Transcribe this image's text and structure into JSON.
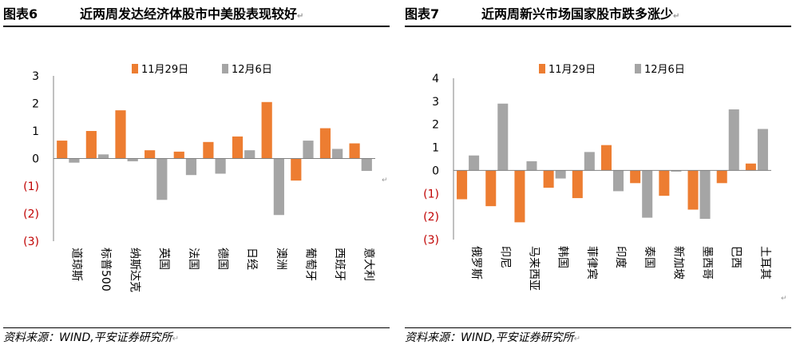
{
  "colors": {
    "series1": "#ED7D31",
    "series2": "#A5A5A5",
    "negative_label": "#C00000"
  },
  "return_mark": "↵",
  "panels": [
    {
      "figure_no": "图表6",
      "title": "近两周发达经济体股市中美股表现较好",
      "source": "资料来源：WIND,平安证券研究所",
      "chart_data": {
        "type": "bar",
        "title": "近两周发达经济体股市中美股表现较好",
        "categories": [
          "道琼斯",
          "标普500",
          "纳斯达克",
          "英国",
          "法国",
          "德国",
          "日经",
          "澳洲",
          "葡萄牙",
          "西班牙",
          "意大利"
        ],
        "series": [
          {
            "name": "11月29日",
            "values": [
              0.65,
              1.0,
              1.75,
              0.3,
              0.25,
              0.6,
              0.8,
              2.05,
              -0.8,
              1.1,
              0.55
            ]
          },
          {
            "name": "12月6日",
            "values": [
              -0.15,
              0.15,
              -0.1,
              -1.5,
              -0.6,
              -0.55,
              0.3,
              -2.05,
              0.65,
              0.35,
              -0.45
            ]
          }
        ],
        "ylim": [
          -3,
          3
        ],
        "yticks": [
          "3",
          "2",
          "1",
          "0",
          "(1)",
          "(2)",
          "(3)"
        ],
        "xlabel": "",
        "ylabel": "",
        "legend": "top-center"
      }
    },
    {
      "figure_no": "图表7",
      "title": "近两周新兴市场国家股市跌多涨少",
      "source": "资料来源：WIND,平安证券研究所",
      "chart_data": {
        "type": "bar",
        "title": "近两周新兴市场国家股市跌多涨少",
        "categories": [
          "俄罗斯",
          "印尼",
          "马来西亚",
          "韩国",
          "菲律宾",
          "印度",
          "泰国",
          "新加坡",
          "墨西哥",
          "巴西",
          "土耳其"
        ],
        "series": [
          {
            "name": "11月29日",
            "values": [
              -1.25,
              -1.55,
              -2.25,
              -0.75,
              -1.2,
              1.1,
              -0.55,
              -1.1,
              -1.7,
              -0.55,
              0.3
            ]
          },
          {
            "name": "12月6日",
            "values": [
              0.65,
              2.9,
              0.4,
              -0.35,
              0.8,
              -0.9,
              -2.05,
              -0.05,
              -2.1,
              2.65,
              1.8
            ]
          }
        ],
        "ylim": [
          -3,
          4
        ],
        "yticks": [
          "4",
          "3",
          "2",
          "1",
          "0",
          "(1)",
          "(2)",
          "(3)"
        ],
        "xlabel": "",
        "ylabel": "",
        "legend": "top-center"
      }
    }
  ]
}
